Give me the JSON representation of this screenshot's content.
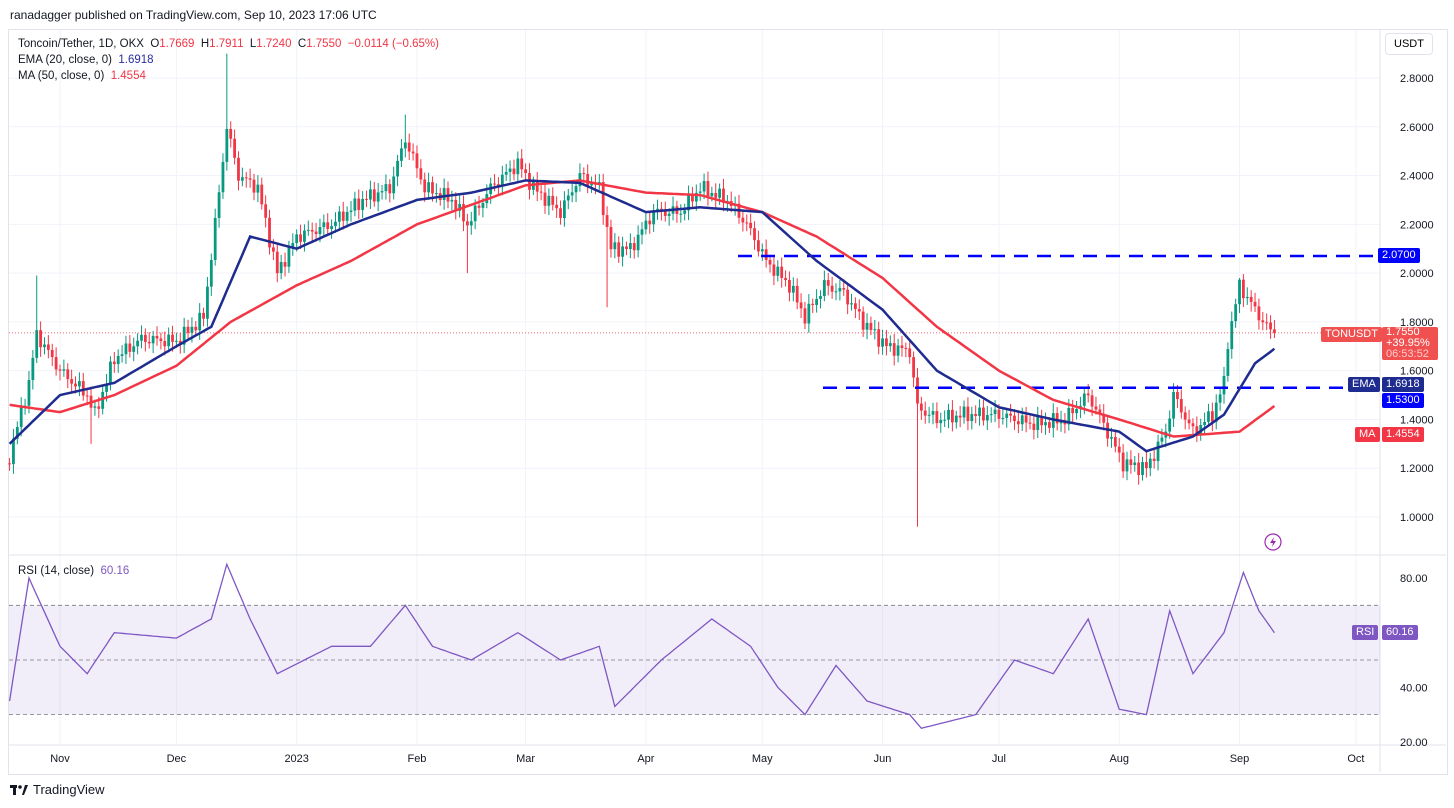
{
  "header": {
    "published": "ranadagger published on TradingView.com, Sep 10, 2023 17:06 UTC"
  },
  "legend": {
    "symbol": "Toncoin/Tether, 1D, OKX",
    "o_label": "O",
    "o": "1.7669",
    "h_label": "H",
    "h": "1.7911",
    "l_label": "L",
    "l": "1.7240",
    "c_label": "C",
    "c": "1.7550",
    "change": "−0.0114 (−0.65%)",
    "ema_label": "EMA (20, close, 0)",
    "ema": "1.6918",
    "ma_label": "MA (50, close, 0)",
    "ma": "1.4554",
    "rsi_label": "RSI (14, close)",
    "rsi": "60.16"
  },
  "axis": {
    "currency": "USDT",
    "ticker": "TONUSDT",
    "price": "1.7550",
    "pct": "+39.95%",
    "countdown": "06:53:52",
    "ema_tag": "EMA",
    "ema_val": "1.6918",
    "ma_tag": "MA",
    "ma_val": "1.4554",
    "rsi_tag": "RSI",
    "rsi_val": "60.16",
    "level_high": "2.0700",
    "level_low": "1.5300"
  },
  "footer": {
    "brand": "TradingView"
  },
  "colors": {
    "up": "#089981",
    "down": "#f23645",
    "ema": "#1e2b8f",
    "ma": "#f23645",
    "rsi": "#7e57c2",
    "level": "#0000ff"
  },
  "chart_data": [
    {
      "type": "candlestick",
      "price_ticks": [
        "1.0000",
        "1.2000",
        "1.4000",
        "1.6000",
        "1.8000",
        "2.0000",
        "2.2000",
        "2.4000",
        "2.6000",
        "2.8000"
      ],
      "time_ticks": [
        [
          "2022-11-01",
          "Nov"
        ],
        [
          "2022-12-01",
          "Dec"
        ],
        [
          "2023-01-01",
          "2023"
        ],
        [
          "2023-02-01",
          "Feb"
        ],
        [
          "2023-03-01",
          "Mar"
        ],
        [
          "2023-04-01",
          "Apr"
        ],
        [
          "2023-05-01",
          "May"
        ],
        [
          "2023-06-01",
          "Jun"
        ],
        [
          "2023-07-01",
          "Jul"
        ],
        [
          "2023-08-01",
          "Aug"
        ],
        [
          "2023-09-01",
          "Sep"
        ],
        [
          "2023-10-01",
          "Oct"
        ]
      ],
      "horizontal_levels": [
        2.07,
        1.53
      ],
      "close": [
        [
          "2022-10-19",
          1.25
        ],
        [
          "2022-10-24",
          1.55
        ],
        [
          "2022-10-26",
          1.75
        ],
        [
          "2022-11-01",
          1.6
        ],
        [
          "2022-11-08",
          1.5
        ],
        [
          "2022-11-10",
          1.42
        ],
        [
          "2022-11-15",
          1.65
        ],
        [
          "2022-11-22",
          1.73
        ],
        [
          "2022-12-01",
          1.72
        ],
        [
          "2022-12-08",
          1.82
        ],
        [
          "2022-12-11",
          2.2
        ],
        [
          "2022-12-14",
          2.6
        ],
        [
          "2022-12-17",
          2.4
        ],
        [
          "2022-12-22",
          2.35
        ],
        [
          "2022-12-27",
          2.0
        ],
        [
          "2023-01-01",
          2.15
        ],
        [
          "2023-01-10",
          2.2
        ],
        [
          "2023-01-18",
          2.3
        ],
        [
          "2023-01-25",
          2.35
        ],
        [
          "2023-01-29",
          2.55
        ],
        [
          "2023-02-03",
          2.35
        ],
        [
          "2023-02-10",
          2.3
        ],
        [
          "2023-02-14",
          2.2
        ],
        [
          "2023-02-20",
          2.35
        ],
        [
          "2023-02-27",
          2.45
        ],
        [
          "2023-03-03",
          2.35
        ],
        [
          "2023-03-10",
          2.25
        ],
        [
          "2023-03-15",
          2.4
        ],
        [
          "2023-03-20",
          2.35
        ],
        [
          "2023-03-23",
          2.1
        ],
        [
          "2023-03-28",
          2.1
        ],
        [
          "2023-04-03",
          2.25
        ],
        [
          "2023-04-10",
          2.25
        ],
        [
          "2023-04-15",
          2.35
        ],
        [
          "2023-04-22",
          2.3
        ],
        [
          "2023-04-27",
          2.2
        ],
        [
          "2023-05-02",
          2.05
        ],
        [
          "2023-05-08",
          1.95
        ],
        [
          "2023-05-12",
          1.82
        ],
        [
          "2023-05-17",
          1.95
        ],
        [
          "2023-05-22",
          1.92
        ],
        [
          "2023-05-27",
          1.8
        ],
        [
          "2023-06-02",
          1.7
        ],
        [
          "2023-06-08",
          1.68
        ],
        [
          "2023-06-10",
          1.45
        ],
        [
          "2023-06-15",
          1.4
        ],
        [
          "2023-06-22",
          1.42
        ],
        [
          "2023-07-01",
          1.42
        ],
        [
          "2023-07-10",
          1.38
        ],
        [
          "2023-07-18",
          1.4
        ],
        [
          "2023-07-24",
          1.5
        ],
        [
          "2023-07-28",
          1.38
        ],
        [
          "2023-08-02",
          1.22
        ],
        [
          "2023-08-08",
          1.2
        ],
        [
          "2023-08-13",
          1.35
        ],
        [
          "2023-08-15",
          1.5
        ],
        [
          "2023-08-20",
          1.35
        ],
        [
          "2023-08-25",
          1.42
        ],
        [
          "2023-08-28",
          1.55
        ],
        [
          "2023-08-29",
          1.72
        ],
        [
          "2023-09-01",
          1.95
        ],
        [
          "2023-09-05",
          1.85
        ],
        [
          "2023-09-08",
          1.78
        ],
        [
          "2023-09-10",
          1.755
        ]
      ],
      "wicks": [
        [
          "2022-10-26",
          "high",
          1.99
        ],
        [
          "2022-11-09",
          "low",
          1.3
        ],
        [
          "2022-12-14",
          "high",
          2.9
        ],
        [
          "2023-01-29",
          "high",
          2.65
        ],
        [
          "2023-02-14",
          "low",
          2.0
        ],
        [
          "2023-03-22",
          "low",
          1.86
        ],
        [
          "2023-06-10",
          "low",
          0.96
        ],
        [
          "2023-09-01",
          "high",
          1.98
        ]
      ],
      "ema20": [
        [
          "2022-10-19",
          1.3
        ],
        [
          "2022-11-01",
          1.5
        ],
        [
          "2022-11-15",
          1.55
        ],
        [
          "2022-12-01",
          1.7
        ],
        [
          "2022-12-10",
          1.78
        ],
        [
          "2022-12-20",
          2.15
        ],
        [
          "2023-01-01",
          2.1
        ],
        [
          "2023-01-15",
          2.2
        ],
        [
          "2023-02-01",
          2.3
        ],
        [
          "2023-02-15",
          2.33
        ],
        [
          "2023-03-01",
          2.38
        ],
        [
          "2023-03-15",
          2.37
        ],
        [
          "2023-04-01",
          2.25
        ],
        [
          "2023-04-15",
          2.27
        ],
        [
          "2023-05-01",
          2.25
        ],
        [
          "2023-05-15",
          2.05
        ],
        [
          "2023-06-01",
          1.85
        ],
        [
          "2023-06-15",
          1.6
        ],
        [
          "2023-07-01",
          1.45
        ],
        [
          "2023-07-15",
          1.4
        ],
        [
          "2023-08-01",
          1.35
        ],
        [
          "2023-08-08",
          1.27
        ],
        [
          "2023-08-20",
          1.33
        ],
        [
          "2023-08-28",
          1.42
        ],
        [
          "2023-09-05",
          1.63
        ],
        [
          "2023-09-10",
          1.69
        ]
      ],
      "ma50": [
        [
          "2022-10-19",
          1.46
        ],
        [
          "2022-11-01",
          1.43
        ],
        [
          "2022-11-15",
          1.5
        ],
        [
          "2022-12-01",
          1.62
        ],
        [
          "2022-12-15",
          1.8
        ],
        [
          "2023-01-01",
          1.95
        ],
        [
          "2023-01-15",
          2.05
        ],
        [
          "2023-02-01",
          2.2
        ],
        [
          "2023-02-15",
          2.28
        ],
        [
          "2023-03-01",
          2.36
        ],
        [
          "2023-03-15",
          2.38
        ],
        [
          "2023-04-01",
          2.33
        ],
        [
          "2023-04-15",
          2.32
        ],
        [
          "2023-05-01",
          2.25
        ],
        [
          "2023-05-15",
          2.15
        ],
        [
          "2023-06-01",
          1.98
        ],
        [
          "2023-06-15",
          1.78
        ],
        [
          "2023-07-01",
          1.6
        ],
        [
          "2023-07-15",
          1.48
        ],
        [
          "2023-08-01",
          1.4
        ],
        [
          "2023-08-15",
          1.33
        ],
        [
          "2023-09-01",
          1.35
        ],
        [
          "2023-09-10",
          1.455
        ]
      ]
    },
    {
      "type": "line",
      "name": "RSI (14, close)",
      "yticks": [
        "20.00",
        "40.00",
        "80.00"
      ],
      "bands": [
        30,
        70
      ],
      "midline": 50,
      "values": [
        [
          "2022-10-19",
          35
        ],
        [
          "2022-10-24",
          80
        ],
        [
          "2022-11-01",
          55
        ],
        [
          "2022-11-08",
          45
        ],
        [
          "2022-11-15",
          60
        ],
        [
          "2022-12-01",
          58
        ],
        [
          "2022-12-10",
          65
        ],
        [
          "2022-12-14",
          85
        ],
        [
          "2022-12-20",
          65
        ],
        [
          "2022-12-27",
          45
        ],
        [
          "2023-01-10",
          55
        ],
        [
          "2023-01-20",
          55
        ],
        [
          "2023-01-29",
          70
        ],
        [
          "2023-02-05",
          55
        ],
        [
          "2023-02-15",
          50
        ],
        [
          "2023-02-27",
          60
        ],
        [
          "2023-03-10",
          50
        ],
        [
          "2023-03-20",
          55
        ],
        [
          "2023-03-24",
          33
        ],
        [
          "2023-04-05",
          50
        ],
        [
          "2023-04-18",
          65
        ],
        [
          "2023-04-28",
          55
        ],
        [
          "2023-05-05",
          40
        ],
        [
          "2023-05-12",
          30
        ],
        [
          "2023-05-20",
          48
        ],
        [
          "2023-05-28",
          35
        ],
        [
          "2023-06-08",
          30
        ],
        [
          "2023-06-11",
          25
        ],
        [
          "2023-06-25",
          30
        ],
        [
          "2023-07-05",
          50
        ],
        [
          "2023-07-15",
          45
        ],
        [
          "2023-07-24",
          65
        ],
        [
          "2023-08-01",
          32
        ],
        [
          "2023-08-08",
          30
        ],
        [
          "2023-08-14",
          68
        ],
        [
          "2023-08-20",
          45
        ],
        [
          "2023-08-28",
          60
        ],
        [
          "2023-09-02",
          82
        ],
        [
          "2023-09-06",
          68
        ],
        [
          "2023-09-10",
          60
        ]
      ]
    }
  ]
}
